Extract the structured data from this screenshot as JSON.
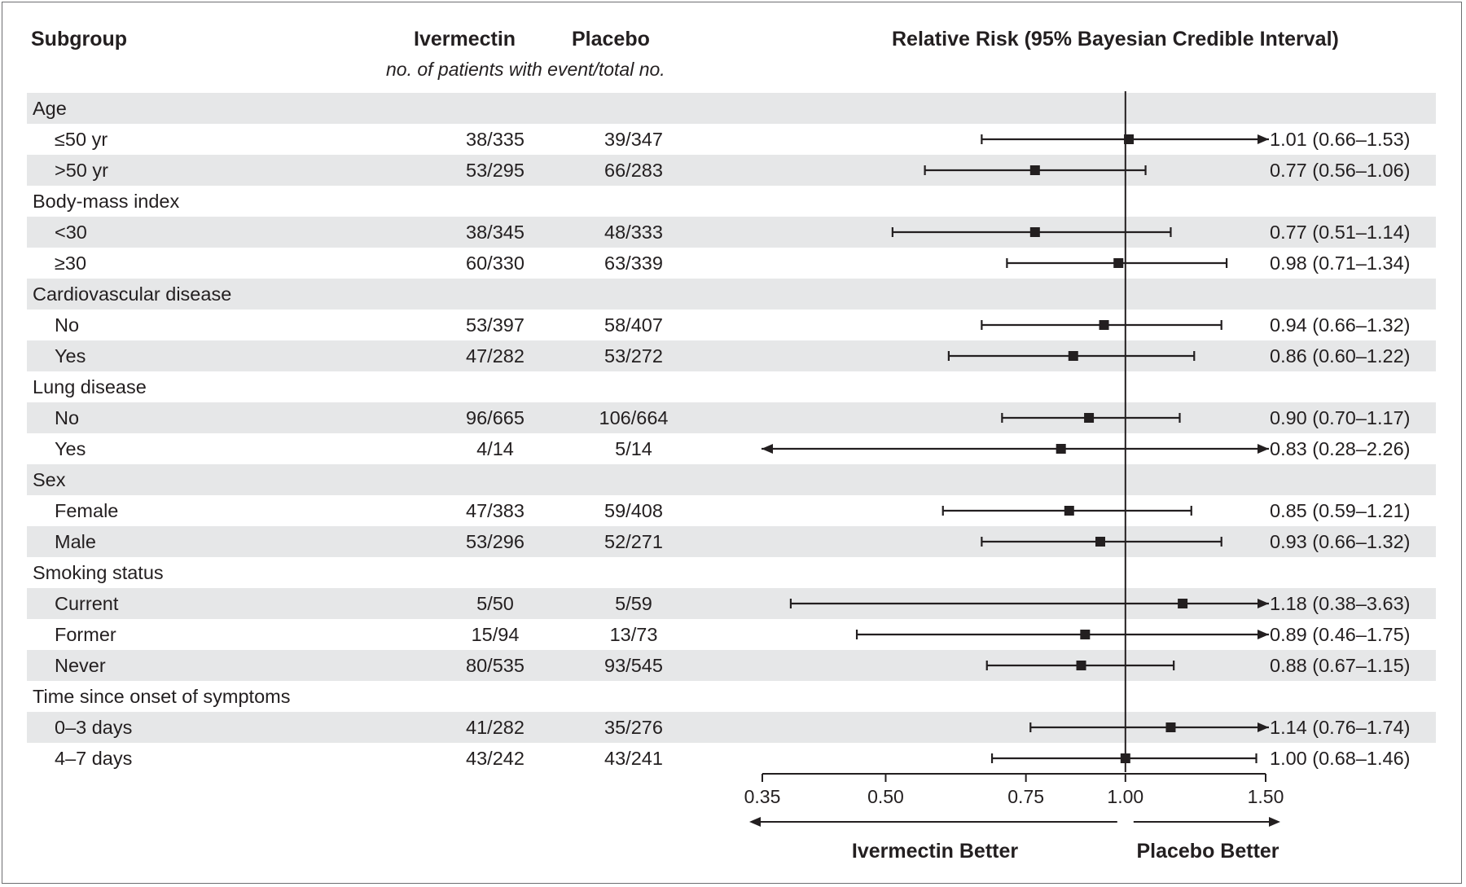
{
  "header": {
    "subgroup": "Subgroup",
    "ivermectin": "Ivermectin",
    "placebo": "Placebo",
    "counts_note": "no. of patients with event/total no.",
    "rr": "Relative Risk (95% Bayesian Credible Interval)"
  },
  "rows": [
    {
      "label": "Age",
      "group": true
    },
    {
      "label": "≤50 yr",
      "iv": "38/335",
      "pl": "39/347",
      "rr_text": "1.01 (0.66–1.53)"
    },
    {
      "label": ">50 yr",
      "iv": "53/295",
      "pl": "66/283",
      "rr_text": "0.77 (0.56–1.06)"
    },
    {
      "label": "Body-mass index",
      "group": true
    },
    {
      "label": "<30",
      "iv": "38/345",
      "pl": "48/333",
      "rr_text": "0.77 (0.51–1.14)"
    },
    {
      "label": "≥30",
      "iv": "60/330",
      "pl": "63/339",
      "rr_text": "0.98 (0.71–1.34)"
    },
    {
      "label": "Cardiovascular disease",
      "group": true
    },
    {
      "label": "No",
      "iv": "53/397",
      "pl": "58/407",
      "rr_text": "0.94 (0.66–1.32)"
    },
    {
      "label": "Yes",
      "iv": "47/282",
      "pl": "53/272",
      "rr_text": "0.86 (0.60–1.22)"
    },
    {
      "label": "Lung disease",
      "group": true
    },
    {
      "label": "No",
      "iv": "96/665",
      "pl": "106/664",
      "rr_text": "0.90 (0.70–1.17)"
    },
    {
      "label": "Yes",
      "iv": "4/14",
      "pl": "5/14",
      "rr_text": "0.83 (0.28–2.26)"
    },
    {
      "label": "Sex",
      "group": true
    },
    {
      "label": "Female",
      "iv": "47/383",
      "pl": "59/408",
      "rr_text": "0.85 (0.59–1.21)"
    },
    {
      "label": "Male",
      "iv": "53/296",
      "pl": "52/271",
      "rr_text": "0.93 (0.66–1.32)"
    },
    {
      "label": "Smoking status",
      "group": true
    },
    {
      "label": "Current",
      "iv": "5/50",
      "pl": "5/59",
      "rr_text": "1.18 (0.38–3.63)"
    },
    {
      "label": "Former",
      "iv": "15/94",
      "pl": "13/73",
      "rr_text": "0.89 (0.46–1.75)"
    },
    {
      "label": "Never",
      "iv": "80/535",
      "pl": "93/545",
      "rr_text": "0.88 (0.67–1.15)"
    },
    {
      "label": "Time since onset of symptoms",
      "group": true
    },
    {
      "label": "0–3 days",
      "iv": "41/282",
      "pl": "35/276",
      "rr_text": "1.14 (0.76–1.74)"
    },
    {
      "label": "4–7 days",
      "iv": "43/242",
      "pl": "43/241",
      "rr_text": "1.00 (0.68–1.46)"
    }
  ],
  "chart_data": {
    "type": "forest",
    "title": "Relative Risk (95% Bayesian Credible Interval)",
    "x_scale": "log",
    "xlim": [
      0.35,
      1.5
    ],
    "ticks": [
      0.35,
      0.5,
      0.75,
      1.0,
      1.5
    ],
    "tick_labels": [
      "0.35",
      "0.50",
      "0.75",
      "1.00",
      "1.50"
    ],
    "reference_line": 1.0,
    "direction_left": "Ivermectin Better",
    "direction_right": "Placebo Better",
    "series": [
      {
        "group": "Age",
        "label": "≤50 yr",
        "rr": 1.01,
        "lo": 0.66,
        "hi": 1.53
      },
      {
        "group": "Age",
        "label": ">50 yr",
        "rr": 0.77,
        "lo": 0.56,
        "hi": 1.06
      },
      {
        "group": "Body-mass index",
        "label": "<30",
        "rr": 0.77,
        "lo": 0.51,
        "hi": 1.14
      },
      {
        "group": "Body-mass index",
        "label": "≥30",
        "rr": 0.98,
        "lo": 0.71,
        "hi": 1.34
      },
      {
        "group": "Cardiovascular disease",
        "label": "No",
        "rr": 0.94,
        "lo": 0.66,
        "hi": 1.32
      },
      {
        "group": "Cardiovascular disease",
        "label": "Yes",
        "rr": 0.86,
        "lo": 0.6,
        "hi": 1.22
      },
      {
        "group": "Lung disease",
        "label": "No",
        "rr": 0.9,
        "lo": 0.7,
        "hi": 1.17
      },
      {
        "group": "Lung disease",
        "label": "Yes",
        "rr": 0.83,
        "lo": 0.28,
        "hi": 2.26
      },
      {
        "group": "Sex",
        "label": "Female",
        "rr": 0.85,
        "lo": 0.59,
        "hi": 1.21
      },
      {
        "group": "Sex",
        "label": "Male",
        "rr": 0.93,
        "lo": 0.66,
        "hi": 1.32
      },
      {
        "group": "Smoking status",
        "label": "Current",
        "rr": 1.18,
        "lo": 0.38,
        "hi": 3.63
      },
      {
        "group": "Smoking status",
        "label": "Former",
        "rr": 0.89,
        "lo": 0.46,
        "hi": 1.75
      },
      {
        "group": "Smoking status",
        "label": "Never",
        "rr": 0.88,
        "lo": 0.67,
        "hi": 1.15
      },
      {
        "group": "Time since onset of symptoms",
        "label": "0–3 days",
        "rr": 1.14,
        "lo": 0.76,
        "hi": 1.74
      },
      {
        "group": "Time since onset of symptoms",
        "label": "4–7 days",
        "rr": 1.0,
        "lo": 0.68,
        "hi": 1.46
      }
    ]
  }
}
